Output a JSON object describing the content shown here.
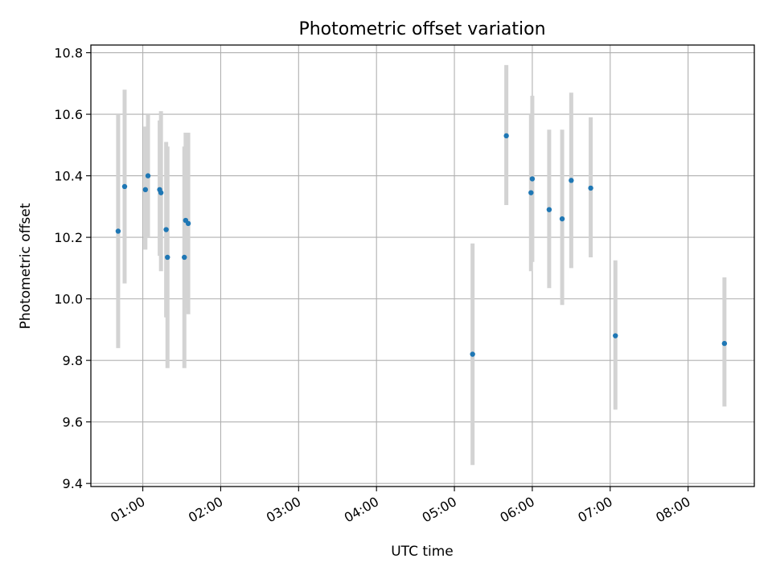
{
  "chart_data": {
    "type": "scatter",
    "title": "Photometric offset variation",
    "xlabel": "UTC time",
    "ylabel": "Photometric offset",
    "xlim": [
      "00:20",
      "08:51"
    ],
    "ylim": [
      9.39,
      10.825
    ],
    "xticks": [
      "01:00",
      "02:00",
      "03:00",
      "04:00",
      "05:00",
      "06:00",
      "07:00",
      "08:00"
    ],
    "yticks": [
      "9.4",
      "9.6",
      "9.8",
      "10.0",
      "10.2",
      "10.4",
      "10.6",
      "10.8"
    ],
    "grid": true,
    "colors": {
      "point": "#1f77b4",
      "errorbar": "#d3d3d3",
      "grid": "#b0b0b0"
    },
    "points": [
      {
        "x": "00:41",
        "y": 10.22,
        "ylow": 9.84,
        "yhigh": 10.6
      },
      {
        "x": "00:46",
        "y": 10.365,
        "ylow": 10.05,
        "yhigh": 10.68
      },
      {
        "x": "01:02",
        "y": 10.355,
        "ylow": 10.16,
        "yhigh": 10.56
      },
      {
        "x": "01:04",
        "y": 10.4,
        "ylow": 10.2,
        "yhigh": 10.6
      },
      {
        "x": "01:13",
        "y": 10.355,
        "ylow": 10.14,
        "yhigh": 10.58
      },
      {
        "x": "01:14",
        "y": 10.345,
        "ylow": 10.09,
        "yhigh": 10.61
      },
      {
        "x": "01:18",
        "y": 10.225,
        "ylow": 9.94,
        "yhigh": 10.51
      },
      {
        "x": "01:19",
        "y": 10.135,
        "ylow": 9.775,
        "yhigh": 10.495
      },
      {
        "x": "01:32",
        "y": 10.135,
        "ylow": 9.775,
        "yhigh": 10.495
      },
      {
        "x": "01:33",
        "y": 10.255,
        "ylow": 9.97,
        "yhigh": 10.54
      },
      {
        "x": "01:35",
        "y": 10.245,
        "ylow": 9.95,
        "yhigh": 10.54
      },
      {
        "x": "05:14",
        "y": 9.82,
        "ylow": 9.46,
        "yhigh": 10.18
      },
      {
        "x": "05:40",
        "y": 10.53,
        "ylow": 10.305,
        "yhigh": 10.76
      },
      {
        "x": "05:59",
        "y": 10.345,
        "ylow": 10.09,
        "yhigh": 10.6
      },
      {
        "x": "06:00",
        "y": 10.39,
        "ylow": 10.12,
        "yhigh": 10.66
      },
      {
        "x": "06:13",
        "y": 10.29,
        "ylow": 10.035,
        "yhigh": 10.55
      },
      {
        "x": "06:23",
        "y": 10.26,
        "ylow": 9.98,
        "yhigh": 10.55
      },
      {
        "x": "06:30",
        "y": 10.385,
        "ylow": 10.1,
        "yhigh": 10.67
      },
      {
        "x": "06:45",
        "y": 10.36,
        "ylow": 10.135,
        "yhigh": 10.59
      },
      {
        "x": "07:04",
        "y": 9.88,
        "ylow": 9.64,
        "yhigh": 10.125
      },
      {
        "x": "08:28",
        "y": 9.855,
        "ylow": 9.65,
        "yhigh": 10.07
      }
    ]
  }
}
